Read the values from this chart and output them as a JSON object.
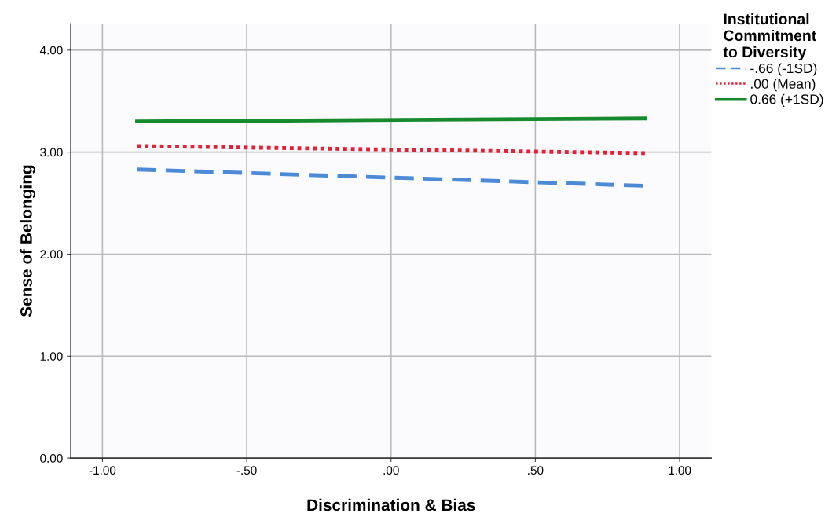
{
  "chart_data": {
    "type": "line",
    "xlabel": "Discrimination & Bias",
    "ylabel": "Sense of Belonging",
    "legend_title": "Institutional\nCommitment\nto Diversity",
    "x": [
      -0.88,
      0.88
    ],
    "series": [
      {
        "name": "-.66 (-1SD)",
        "color": "#4a8ad6",
        "line_style": "dashed",
        "values": [
          2.83,
          2.67
        ]
      },
      {
        "name": ".00 (Mean)",
        "color": "#e0213a",
        "line_style": "dotted",
        "values": [
          3.06,
          2.99
        ]
      },
      {
        "name": "0.66 (+1SD)",
        "color": "#178a2e",
        "line_style": "solid",
        "values": [
          3.3,
          3.33
        ]
      }
    ],
    "xlim": [
      -1.11,
      1.11
    ],
    "ylim": [
      0,
      4.26
    ],
    "xticks": [
      {
        "value": -1,
        "label": "-1.00"
      },
      {
        "value": -0.5,
        "label": "-.50"
      },
      {
        "value": 0,
        "label": ".00"
      },
      {
        "value": 0.5,
        "label": ".50"
      },
      {
        "value": 1,
        "label": "1.00"
      }
    ],
    "yticks": [
      {
        "value": 0,
        "label": "0.00"
      },
      {
        "value": 1,
        "label": "1.00"
      },
      {
        "value": 2,
        "label": "2.00"
      },
      {
        "value": 3,
        "label": "3.00"
      },
      {
        "value": 4,
        "label": "4.00"
      }
    ],
    "grid": true,
    "legend": "top right"
  }
}
